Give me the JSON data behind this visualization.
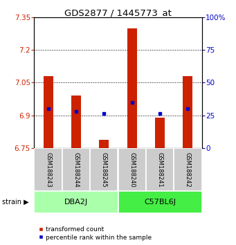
{
  "title": "GDS2877 / 1445773_at",
  "samples": [
    "GSM188243",
    "GSM188244",
    "GSM188245",
    "GSM188240",
    "GSM188241",
    "GSM188242"
  ],
  "bar_tops": [
    7.08,
    6.99,
    6.79,
    7.3,
    6.89,
    7.08
  ],
  "bar_bottom": 6.75,
  "percentile_values": [
    6.93,
    6.92,
    6.91,
    6.96,
    6.91,
    6.93
  ],
  "ylim": [
    6.75,
    7.35
  ],
  "yticks": [
    6.75,
    6.9,
    7.05,
    7.2,
    7.35
  ],
  "ytick_labels": [
    "6.75",
    "6.9",
    "7.05",
    "7.2",
    "7.35"
  ],
  "right_yticks_norm": [
    0,
    25,
    50,
    75,
    100
  ],
  "bar_color": "#cc2200",
  "marker_color": "#0000cc",
  "groups": [
    {
      "label": "DBA2J",
      "indices": [
        0,
        1,
        2
      ],
      "color": "#aaffaa"
    },
    {
      "label": "C57BL6J",
      "indices": [
        3,
        4,
        5
      ],
      "color": "#44ee44"
    }
  ],
  "xlabel_color": "#cc2200",
  "ylabel_right_color": "#0000cc",
  "dotted_gridlines": [
    6.9,
    7.05,
    7.2
  ],
  "bar_width": 0.35,
  "sample_box_color": "#cccccc",
  "legend_labels": [
    "transformed count",
    "percentile rank within the sample"
  ]
}
